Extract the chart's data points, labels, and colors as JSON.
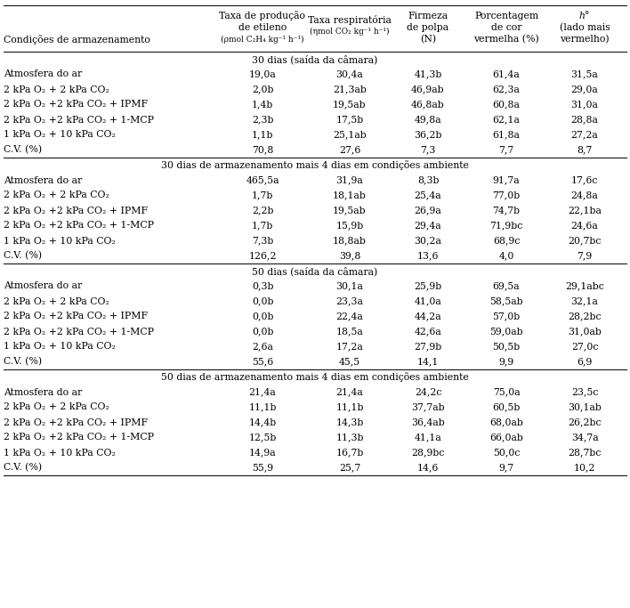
{
  "col_headers_line1": [
    "Condições de armazenamento",
    "Taxa de produção",
    "Taxa respiratória",
    "Firmeza",
    "Porcentagem",
    "h°"
  ],
  "col_headers_line2": [
    "",
    "de etileno",
    "(ηmol CO₂ kg⁻¹ h⁻¹)",
    "de polpa",
    "de cor",
    "(lado mais"
  ],
  "col_headers_line3": [
    "",
    "(ρmol C₂H₄ kg⁻¹ h⁻¹)",
    "",
    "(N)",
    "vermelha (%)",
    "vermelho)"
  ],
  "sections": [
    {
      "title": "30 dias (saída da câmara)",
      "rows": [
        [
          "Atmosfera do ar",
          "19,0a",
          "30,4a",
          "41,3b",
          "61,4a",
          "31,5a"
        ],
        [
          "2 kPa O₂ + 2 kPa CO₂",
          "2,0b",
          "21,3ab",
          "46,9ab",
          "62,3a",
          "29,0a"
        ],
        [
          "2 kPa O₂ +2 kPa CO₂ + IPMF",
          "1,4b",
          "19,5ab",
          "46,8ab",
          "60,8a",
          "31,0a"
        ],
        [
          "2 kPa O₂ +2 kPa CO₂ + 1-MCP",
          "2,3b",
          "17,5b",
          "49,8a",
          "62,1a",
          "28,8a"
        ],
        [
          "1 kPa O₂ + 10 kPa CO₂",
          "1,1b",
          "25,1ab",
          "36,2b",
          "61,8a",
          "27,2a"
        ],
        [
          "C.V. (%)",
          "70,8",
          "27,6",
          "7,3",
          "7,7",
          "8,7"
        ]
      ]
    },
    {
      "title": "30 dias de armazenamento mais 4 dias em condições ambiente",
      "rows": [
        [
          "Atmosfera do ar",
          "465,5a",
          "31,9a",
          "8,3b",
          "91,7a",
          "17,6c"
        ],
        [
          "2 kPa O₂ + 2 kPa CO₂",
          "1,7b",
          "18,1ab",
          "25,4a",
          "77,0b",
          "24,8a"
        ],
        [
          "2 kPa O₂ +2 kPa CO₂ + IPMF",
          "2,2b",
          "19,5ab",
          "26,9a",
          "74,7b",
          "22,1ba"
        ],
        [
          "2 kPa O₂ +2 kPa CO₂ + 1-MCP",
          "1,7b",
          "15,9b",
          "29,4a",
          "71,9bc",
          "24,6a"
        ],
        [
          "1 kPa O₂ + 10 kPa CO₂",
          "7,3b",
          "18,8ab",
          "30,2a",
          "68,9c",
          "20,7bc"
        ],
        [
          "C.V. (%)",
          "126,2",
          "39,8",
          "13,6",
          "4,0",
          "7,9"
        ]
      ]
    },
    {
      "title": "50 dias (saída da câmara)",
      "rows": [
        [
          "Atmosfera do ar",
          "0,3b",
          "30,1a",
          "25,9b",
          "69,5a",
          "29,1abc"
        ],
        [
          "2 kPa O₂ + 2 kPa CO₂",
          "0,0b",
          "23,3a",
          "41,0a",
          "58,5ab",
          "32,1a"
        ],
        [
          "2 kPa O₂ +2 kPa CO₂ + IPMF",
          "0,0b",
          "22,4a",
          "44,2a",
          "57,0b",
          "28,2bc"
        ],
        [
          "2 kPa O₂ +2 kPa CO₂ + 1-MCP",
          "0,0b",
          "18,5a",
          "42,6a",
          "59,0ab",
          "31,0ab"
        ],
        [
          "1 kPa O₂ + 10 kPa CO₂",
          "2,6a",
          "17,2a",
          "27,9b",
          "50,5b",
          "27,0c"
        ],
        [
          "C.V. (%)",
          "55,6",
          "45,5",
          "14,1",
          "9,9",
          "6,9"
        ]
      ]
    },
    {
      "title": "50 dias de armazenamento mais 4 dias em condições ambiente",
      "rows": [
        [
          "Atmosfera do ar",
          "21,4a",
          "21,4a",
          "24,2c",
          "75,0a",
          "23,5c"
        ],
        [
          "2 kPa O₂ + 2 kPa CO₂",
          "11,1b",
          "11,1b",
          "37,7ab",
          "60,5b",
          "30,1ab"
        ],
        [
          "2 kPa O₂ +2 kPa CO₂ + IPMF",
          "14,4b",
          "14,3b",
          "36,4ab",
          "68,0ab",
          "26,2bc"
        ],
        [
          "2 kPa O₂ +2 kPa CO₂ + 1-MCP",
          "12,5b",
          "11,3b",
          "41,1a",
          "66,0ab",
          "34,7a"
        ],
        [
          "1 kPa O₂ + 10 kPa CO₂",
          "14,9a",
          "16,7b",
          "28,9bc",
          "50,0c",
          "28,7bc"
        ],
        [
          "C.V. (%)",
          "55,9",
          "25,7",
          "14,6",
          "9,7",
          "10,2"
        ]
      ]
    }
  ],
  "background_color": "#ffffff",
  "text_color": "#000000",
  "font_size": 7.8,
  "header_font_size": 7.8
}
